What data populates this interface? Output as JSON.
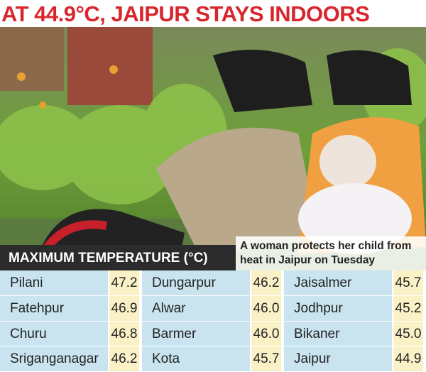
{
  "header": {
    "title": "AT 44.9°C, JAIPUR STAYS INDOORS"
  },
  "photo": {
    "caption": "A woman protects her child from heat in Jaipur on Tuesday"
  },
  "table": {
    "title": "MAXIMUM TEMPERATURE (°C)",
    "rows": [
      [
        [
          "Pilani",
          "47.2"
        ],
        [
          "Dungarpur",
          "46.2"
        ],
        [
          "Jaisalmer",
          "45.7"
        ]
      ],
      [
        [
          "Fatehpur",
          "46.9"
        ],
        [
          "Alwar",
          "46.0"
        ],
        [
          "Jodhpur",
          "45.2"
        ]
      ],
      [
        [
          "Churu",
          "46.8"
        ],
        [
          "Barmer",
          "46.0"
        ],
        [
          "Bikaner",
          "45.0"
        ]
      ],
      [
        [
          "Sriganganagar",
          "46.2"
        ],
        [
          "Kota",
          "45.7"
        ],
        [
          "Jaipur",
          "44.9"
        ]
      ]
    ]
  }
}
